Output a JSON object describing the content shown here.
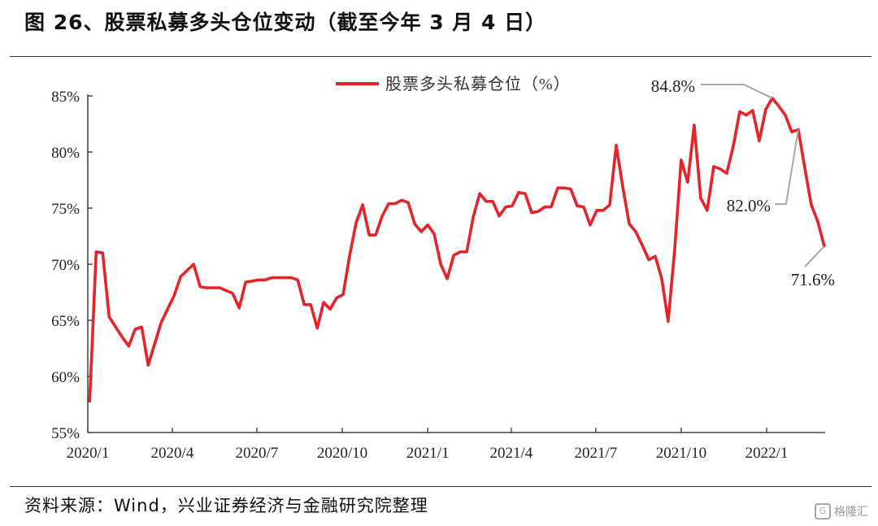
{
  "title": "图 26、股票私募多头仓位变动（截至今年 3 月 4 日）",
  "source": "资料来源：Wind，兴业证券经济与金融研究院整理",
  "watermark": {
    "text": "格隆汇",
    "icon": "gelonghui-logo-icon"
  },
  "colors": {
    "series": "#e3242b",
    "axis": "#222222",
    "callout": "#a6a6a6"
  },
  "chart_data": {
    "type": "line",
    "title": "",
    "xlabel": "",
    "ylabel": "",
    "ylim": [
      55,
      85
    ],
    "yticks": [
      55,
      60,
      65,
      70,
      75,
      80,
      85
    ],
    "ytick_labels": [
      "55%",
      "60%",
      "65%",
      "70%",
      "75%",
      "80%",
      "85%"
    ],
    "xticks": [
      "2020/1",
      "2020/4",
      "2020/7",
      "2020/10",
      "2021/1",
      "2021/4",
      "2021/7",
      "2021/10",
      "2022/1"
    ],
    "grid": false,
    "legend": "top-center",
    "series": [
      {
        "name": "股票多头私募仓位（%）",
        "points": [
          [
            "2020-01-03",
            57.8
          ],
          [
            "2020-01-10",
            71.1
          ],
          [
            "2020-01-17",
            71.0
          ],
          [
            "2020-01-24",
            65.3
          ],
          [
            "2020-02-07",
            63.5
          ],
          [
            "2020-02-14",
            62.7
          ],
          [
            "2020-02-21",
            64.2
          ],
          [
            "2020-02-28",
            64.4
          ],
          [
            "2020-03-06",
            61.0
          ],
          [
            "2020-03-20",
            64.8
          ],
          [
            "2020-03-27",
            66.0
          ],
          [
            "2020-04-03",
            67.2
          ],
          [
            "2020-04-10",
            68.9
          ],
          [
            "2020-04-24",
            70.0
          ],
          [
            "2020-05-01",
            68.0
          ],
          [
            "2020-05-08",
            67.9
          ],
          [
            "2020-05-22",
            67.9
          ],
          [
            "2020-06-05",
            67.4
          ],
          [
            "2020-06-12",
            66.1
          ],
          [
            "2020-06-19",
            68.4
          ],
          [
            "2020-07-03",
            68.6
          ],
          [
            "2020-07-10",
            68.6
          ],
          [
            "2020-07-17",
            68.8
          ],
          [
            "2020-07-31",
            68.8
          ],
          [
            "2020-08-07",
            68.8
          ],
          [
            "2020-08-14",
            68.6
          ],
          [
            "2020-08-21",
            66.4
          ],
          [
            "2020-08-28",
            66.4
          ],
          [
            "2020-09-04",
            64.3
          ],
          [
            "2020-09-11",
            66.6
          ],
          [
            "2020-09-18",
            66.0
          ],
          [
            "2020-09-25",
            67.0
          ],
          [
            "2020-10-02",
            67.3
          ],
          [
            "2020-10-09",
            70.8
          ],
          [
            "2020-10-16",
            73.7
          ],
          [
            "2020-10-23",
            75.3
          ],
          [
            "2020-10-30",
            72.6
          ],
          [
            "2020-11-06",
            72.6
          ],
          [
            "2020-11-13",
            74.3
          ],
          [
            "2020-11-20",
            75.4
          ],
          [
            "2020-11-27",
            75.4
          ],
          [
            "2020-12-04",
            75.7
          ],
          [
            "2020-12-11",
            75.5
          ],
          [
            "2020-12-18",
            73.6
          ],
          [
            "2020-12-25",
            72.9
          ],
          [
            "2021-01-01",
            73.5
          ],
          [
            "2021-01-08",
            72.7
          ],
          [
            "2021-01-15",
            70.0
          ],
          [
            "2021-01-22",
            68.7
          ],
          [
            "2021-01-29",
            70.8
          ],
          [
            "2021-02-05",
            71.1
          ],
          [
            "2021-02-12",
            71.1
          ],
          [
            "2021-02-19",
            74.2
          ],
          [
            "2021-02-26",
            76.3
          ],
          [
            "2021-03-05",
            75.6
          ],
          [
            "2021-03-12",
            75.6
          ],
          [
            "2021-03-19",
            74.3
          ],
          [
            "2021-03-26",
            75.1
          ],
          [
            "2021-04-02",
            75.2
          ],
          [
            "2021-04-09",
            76.4
          ],
          [
            "2021-04-16",
            76.3
          ],
          [
            "2021-04-23",
            74.6
          ],
          [
            "2021-04-30",
            74.7
          ],
          [
            "2021-05-07",
            75.1
          ],
          [
            "2021-05-14",
            75.1
          ],
          [
            "2021-05-21",
            76.8
          ],
          [
            "2021-05-28",
            76.8
          ],
          [
            "2021-06-04",
            76.7
          ],
          [
            "2021-06-11",
            75.2
          ],
          [
            "2021-06-18",
            75.1
          ],
          [
            "2021-06-25",
            73.5
          ],
          [
            "2021-07-02",
            74.8
          ],
          [
            "2021-07-09",
            74.8
          ],
          [
            "2021-07-16",
            75.3
          ],
          [
            "2021-07-23",
            80.6
          ],
          [
            "2021-07-30",
            76.9
          ],
          [
            "2021-08-06",
            73.6
          ],
          [
            "2021-08-13",
            72.9
          ],
          [
            "2021-08-20",
            71.7
          ],
          [
            "2021-08-27",
            70.4
          ],
          [
            "2021-09-03",
            70.7
          ],
          [
            "2021-09-10",
            68.7
          ],
          [
            "2021-09-17",
            64.9
          ],
          [
            "2021-09-24",
            71.3
          ],
          [
            "2021-10-01",
            79.3
          ],
          [
            "2021-10-08",
            77.3
          ],
          [
            "2021-10-15",
            82.4
          ],
          [
            "2021-10-22",
            75.9
          ],
          [
            "2021-10-29",
            74.8
          ],
          [
            "2021-11-05",
            78.7
          ],
          [
            "2021-11-12",
            78.5
          ],
          [
            "2021-11-19",
            78.1
          ],
          [
            "2021-11-26",
            80.5
          ],
          [
            "2021-12-03",
            83.6
          ],
          [
            "2021-12-10",
            83.3
          ],
          [
            "2021-12-17",
            83.7
          ],
          [
            "2021-12-24",
            81.0
          ],
          [
            "2021-12-31",
            83.8
          ],
          [
            "2022-01-07",
            84.8
          ],
          [
            "2022-01-14",
            84.1
          ],
          [
            "2022-01-21",
            83.3
          ],
          [
            "2022-01-28",
            81.8
          ],
          [
            "2022-02-04",
            82.0
          ],
          [
            "2022-02-11",
            78.6
          ],
          [
            "2022-02-18",
            75.3
          ],
          [
            "2022-02-25",
            73.8
          ],
          [
            "2022-03-04",
            71.6
          ]
        ]
      }
    ],
    "annotations": [
      {
        "text": "84.8%",
        "at": "2022-01-07",
        "value": 84.8
      },
      {
        "text": "82.0%",
        "at": "2022-02-04",
        "value": 82.0
      },
      {
        "text": "71.6%",
        "at": "2022-03-04",
        "value": 71.6
      }
    ]
  }
}
